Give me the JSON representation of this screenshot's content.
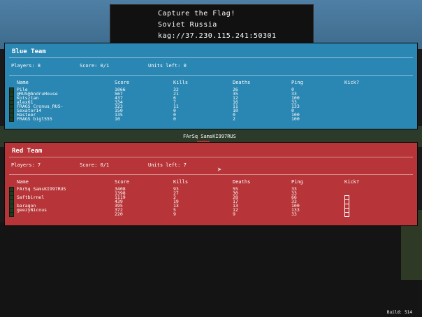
{
  "server": {
    "mode": "Capture the Flag!",
    "name": "Soviet Russia",
    "address": "kag://37.230.115.241:50301"
  },
  "columns": {
    "name": "Name",
    "score": "Score",
    "kills": "Kills",
    "deaths": "Deaths",
    "ping": "Ping",
    "kick": "Kick?"
  },
  "blue": {
    "title": "Blue Team",
    "players_label": "Players: 8",
    "score_label": "Score: 0/1",
    "units_label": "Units left: 0",
    "rows": [
      {
        "name": "Pile",
        "score": "1066",
        "kills": "32",
        "deaths": "26",
        "ping": "0",
        "color": "#ffffff"
      },
      {
        "name": "@RUS@AndruHouse",
        "score": "567",
        "kills": "21",
        "deaths": "35",
        "ping": "33",
        "color": "#ffffff"
      },
      {
        "name": "Kotsztan",
        "score": "437",
        "kills": "6",
        "deaths": "12",
        "ping": "100",
        "color": "#ffffff"
      },
      {
        "name": "alex61",
        "score": "334",
        "kills": "7",
        "deaths": "16",
        "ping": "33",
        "color": "#ffffff"
      },
      {
        "name": "FRAGS Cronus_RUS-",
        "score": "323",
        "kills": "11",
        "deaths": "11",
        "ping": "133",
        "color": "#ffffff"
      },
      {
        "name": "Sexator14",
        "score": "150",
        "kills": "0",
        "deaths": "10",
        "ping": "0",
        "color": "#ffffff"
      },
      {
        "name": "Hasteer",
        "score": "135",
        "kills": "0",
        "deaths": "0",
        "ping": "100",
        "color": "#ffffff"
      },
      {
        "name": "FRAGS bigl555",
        "score": "10",
        "kills": "0",
        "deaths": "2",
        "ping": "100",
        "color": "#ffffff"
      }
    ]
  },
  "red": {
    "title": "Red Team",
    "players_label": "Players: 7",
    "score_label": "Score: 0/1",
    "units_label": "Units left: 7",
    "rows": [
      {
        "name": "FArSq SamsKI997RUS",
        "score": "3408",
        "kills": "93",
        "deaths": "55",
        "ping": "33",
        "color": "#ffffff",
        "kick": false
      },
      {
        "name": "",
        "score": "1398",
        "kills": "27",
        "deaths": "30",
        "ping": "33",
        "color": "#ffffff",
        "kick": false
      },
      {
        "name": "Saftbirnel",
        "score": "1119",
        "kills": "2",
        "deaths": "28",
        "ping": "66",
        "color": "#ffffff",
        "kick": true
      },
      {
        "name": "",
        "score": "439",
        "kills": "19",
        "deaths": "17",
        "ping": "33",
        "color": "#e89a3a",
        "kick": true
      },
      {
        "name": "baragon",
        "score": "395",
        "kills": "13",
        "deaths": "13",
        "ping": "100",
        "color": "#ffffff",
        "kick": true
      },
      {
        "name": "geezyNicous",
        "score": "372",
        "kills": "5",
        "deaths": "12",
        "ping": "133",
        "color": "#ffffff",
        "kick": true
      },
      {
        "name": "",
        "score": "220",
        "kills": "9",
        "deaths": "9",
        "ping": "33",
        "color": "#ffffff",
        "kick": true
      }
    ]
  },
  "between_name": "FArSq SamsKI997RUS",
  "hearts": "♥♥♥",
  "build": "Build: 514"
}
